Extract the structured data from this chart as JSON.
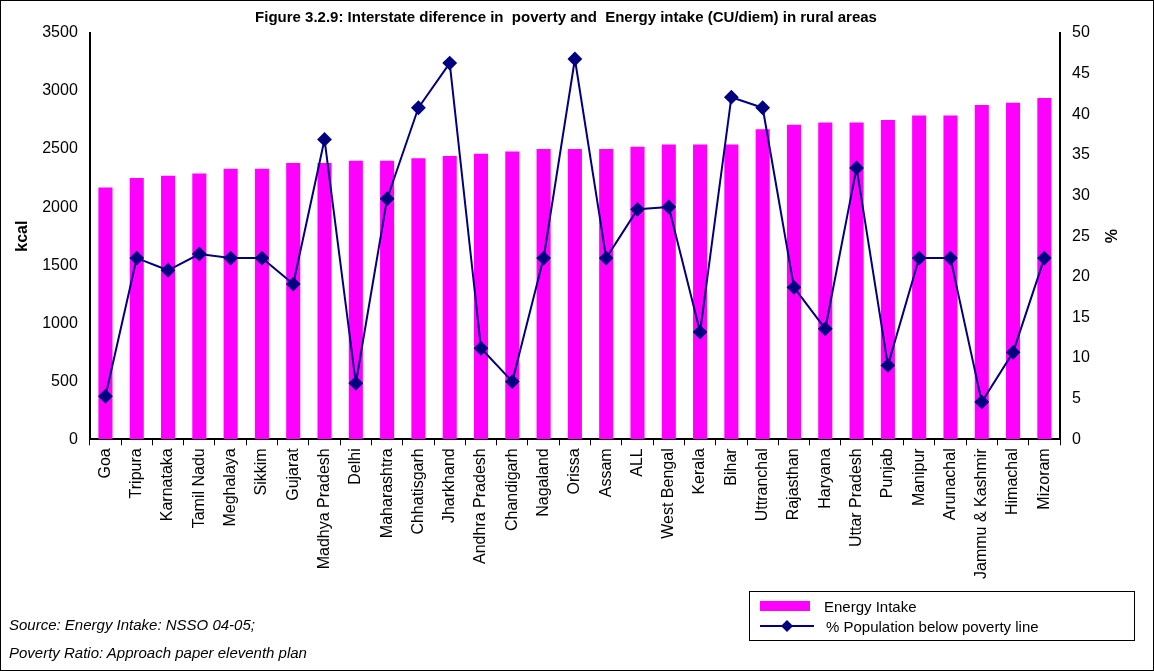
{
  "chart_data": {
    "type": "bar",
    "title": "Figure 3.2.9: Interstate diference in  poverty and  Energy intake (CU/diem) in rural areas",
    "ylabel": "kcal",
    "y2label": "%",
    "categories": [
      "Goa",
      "Tripura",
      "Karnataka",
      "Tamil Nadu",
      "Meghalaya",
      "Sikkim",
      "Gujarat",
      "Madhya Pradesh",
      "Delhi",
      "Maharashtra",
      "Chhatisgarh",
      "Jharkhand",
      "Andhra Pradesh",
      "Chandigarh",
      "Nagaland",
      "Orissa",
      "Assam",
      "ALL",
      "West Bengal",
      "Kerala",
      "Bihar",
      "Uttranchal",
      "Rajasthan",
      "Haryana",
      "Uttar Pradesh",
      "Punjab",
      "Manipur",
      "Arunachal",
      "Jammu & Kashmir",
      "Himachal",
      "Mizoram"
    ],
    "series": [
      {
        "name": "Energy Intake",
        "color": "#ff00ff",
        "values": [
          2170,
          2250,
          2270,
          2290,
          2330,
          2330,
          2380,
          2380,
          2400,
          2400,
          2420,
          2440,
          2460,
          2480,
          2500,
          2500,
          2500,
          2520,
          2540,
          2540,
          2540,
          2670,
          2710,
          2730,
          2730,
          2750,
          2790,
          2790,
          2880,
          2900,
          2940
        ]
      },
      {
        "name": "% Population below poverty line",
        "type": "line",
        "axis": "y2",
        "color": "#000080",
        "marker": "diamond",
        "values": [
          5.3,
          22.3,
          20.8,
          22.8,
          22.3,
          22.3,
          19.1,
          36.9,
          6.9,
          29.6,
          40.8,
          46.3,
          11.2,
          7.1,
          22.3,
          46.8,
          22.3,
          28.3,
          28.6,
          13.2,
          42.1,
          40.8,
          18.7,
          13.6,
          33.4,
          9.1,
          22.3,
          22.3,
          4.6,
          10.7,
          22.3
        ]
      }
    ],
    "ylim": [
      0,
      3500
    ],
    "yticks": [
      0,
      500,
      1000,
      1500,
      2000,
      2500,
      3000,
      3500
    ],
    "y2lim": [
      0,
      50
    ],
    "y2ticks": [
      0,
      5,
      10,
      15,
      20,
      25,
      30,
      35,
      40,
      45,
      50
    ],
    "grid": false,
    "legend": "bottom right",
    "annotations": [
      "Source: Energy Intake: NSSO 04-05;",
      "Poverty Ratio: Approach paper eleventh plan"
    ]
  }
}
